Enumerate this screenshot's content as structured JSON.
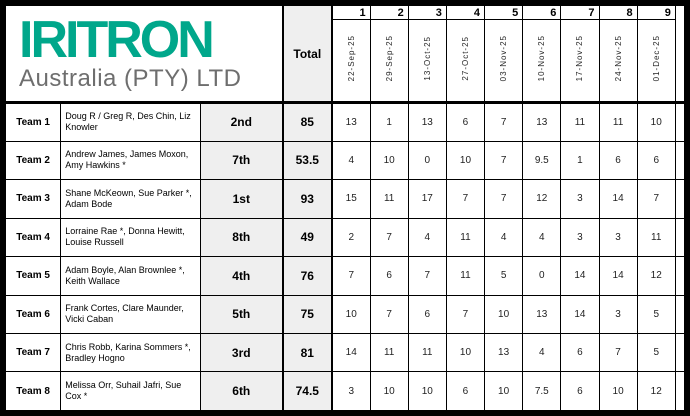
{
  "logo": {
    "brand": "IRITRON",
    "subtitle": "Australia (PTY) LTD"
  },
  "header": {
    "total_label": "Total",
    "week_numbers": [
      "1",
      "2",
      "3",
      "4",
      "5",
      "6",
      "7",
      "8",
      "9"
    ],
    "week_dates": [
      "22-Sep-25",
      "29-Sep-25",
      "13-Oct-25",
      "27-Oct-25",
      "03-Nov-25",
      "10-Nov-25",
      "17-Nov-25",
      "24-Nov-25",
      "01-Dec-25"
    ]
  },
  "colors": {
    "brand_green": "#00A78B",
    "subtitle_gray": "#6E6E6E",
    "shaded_cell": "#EFEFEF",
    "grid_line": "#000000"
  },
  "teams": [
    {
      "team": "Team 1",
      "members": "Doug R / Greg R, Des Chin, Liz Knowler",
      "rank": "2nd",
      "total": "85",
      "scores": [
        "13",
        "1",
        "13",
        "6",
        "7",
        "13",
        "11",
        "11",
        "10"
      ]
    },
    {
      "team": "Team 2",
      "members": "Andrew James, James Moxon, Amy Hawkins *",
      "rank": "7th",
      "total": "53.5",
      "scores": [
        "4",
        "10",
        "0",
        "10",
        "7",
        "9.5",
        "1",
        "6",
        "6"
      ]
    },
    {
      "team": "Team 3",
      "members": "Shane McKeown, Sue Parker *, Adam Bode",
      "rank": "1st",
      "total": "93",
      "scores": [
        "15",
        "11",
        "17",
        "7",
        "7",
        "12",
        "3",
        "14",
        "7"
      ]
    },
    {
      "team": "Team 4",
      "members": "Lorraine Rae *, Donna Hewitt, Louise Russell",
      "rank": "8th",
      "total": "49",
      "scores": [
        "2",
        "7",
        "4",
        "11",
        "4",
        "4",
        "3",
        "3",
        "11"
      ]
    },
    {
      "team": "Team 5",
      "members": "Adam Boyle, Alan Brownlee *, Keith Wallace",
      "rank": "4th",
      "total": "76",
      "scores": [
        "7",
        "6",
        "7",
        "11",
        "5",
        "0",
        "14",
        "14",
        "12"
      ]
    },
    {
      "team": "Team 6",
      "members": "Frank Cortes, Clare Maunder, Vicki Caban",
      "rank": "5th",
      "total": "75",
      "scores": [
        "10",
        "7",
        "6",
        "7",
        "10",
        "13",
        "14",
        "3",
        "5"
      ]
    },
    {
      "team": "Team 7",
      "members": "Chris Robb, Karina Sommers *, Bradley Hogno",
      "rank": "3rd",
      "total": "81",
      "scores": [
        "14",
        "11",
        "11",
        "10",
        "13",
        "4",
        "6",
        "7",
        "5"
      ]
    },
    {
      "team": "Team 8",
      "members": "Melissa Orr, Suhail Jafri, Sue Cox *",
      "rank": "6th",
      "total": "74.5",
      "scores": [
        "3",
        "10",
        "10",
        "6",
        "10",
        "7.5",
        "6",
        "10",
        "12"
      ]
    }
  ]
}
